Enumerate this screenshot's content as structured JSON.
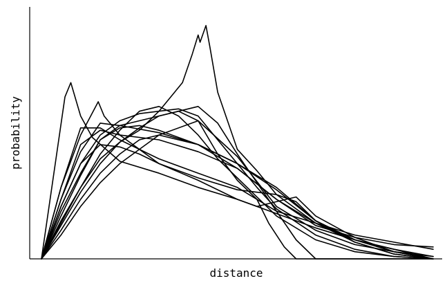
{
  "chart_data": {
    "type": "line",
    "title": "",
    "xlabel": "distance",
    "ylabel": "probability",
    "xlim": [
      0,
      1
    ],
    "ylim": [
      0,
      1
    ],
    "grid": false,
    "legend": "none",
    "line_color": "#000000",
    "series": [
      {
        "x": [
          0,
          0.06,
          0.075,
          0.1,
          0.13,
          0.2,
          0.3,
          0.4,
          0.5,
          0.6,
          0.7,
          0.8,
          0.9,
          1.0
        ],
        "values": [
          0,
          0.68,
          0.74,
          0.6,
          0.51,
          0.41,
          0.36,
          0.3,
          0.25,
          0.19,
          0.13,
          0.08,
          0.04,
          0.01
        ]
      },
      {
        "x": [
          0,
          0.05,
          0.1,
          0.145,
          0.16,
          0.2,
          0.3,
          0.4,
          0.5,
          0.6,
          0.7,
          0.8,
          0.9,
          1.0
        ],
        "values": [
          0,
          0.3,
          0.52,
          0.66,
          0.6,
          0.52,
          0.5,
          0.45,
          0.38,
          0.25,
          0.15,
          0.08,
          0.03,
          0.0
        ]
      },
      {
        "x": [
          0,
          0.05,
          0.1,
          0.15,
          0.2,
          0.25,
          0.3,
          0.36,
          0.385,
          0.4,
          0.405,
          0.42,
          0.43,
          0.45,
          0.5,
          0.55,
          0.6,
          0.7,
          0.8,
          0.9,
          1.0
        ],
        "values": [
          0,
          0.14,
          0.28,
          0.4,
          0.49,
          0.54,
          0.62,
          0.74,
          0.86,
          0.94,
          0.91,
          0.98,
          0.89,
          0.7,
          0.46,
          0.37,
          0.27,
          0.15,
          0.07,
          0.02,
          0.0
        ]
      },
      {
        "x": [
          0,
          0.05,
          0.1,
          0.15,
          0.2,
          0.25,
          0.3,
          0.35,
          0.4,
          0.45,
          0.5,
          0.55,
          0.6,
          0.7,
          0.8,
          0.9,
          1.0
        ],
        "values": [
          0,
          0.16,
          0.3,
          0.44,
          0.54,
          0.62,
          0.64,
          0.6,
          0.52,
          0.42,
          0.34,
          0.26,
          0.18,
          0.08,
          0.03,
          0.01,
          0.0
        ]
      },
      {
        "x": [
          0,
          0.05,
          0.1,
          0.15,
          0.2,
          0.25,
          0.3,
          0.35,
          0.4,
          0.45,
          0.5,
          0.55,
          0.6,
          0.7,
          0.8,
          0.9,
          1.0
        ],
        "values": [
          0,
          0.22,
          0.4,
          0.52,
          0.58,
          0.61,
          0.62,
          0.63,
          0.6,
          0.5,
          0.4,
          0.3,
          0.21,
          0.1,
          0.04,
          0.01,
          0.0
        ]
      },
      {
        "x": [
          0,
          0.05,
          0.1,
          0.15,
          0.2,
          0.25,
          0.3,
          0.35,
          0.4,
          0.45,
          0.5,
          0.55,
          0.6,
          0.65,
          0.7,
          0.8,
          0.9,
          1.0
        ],
        "values": [
          0,
          0.2,
          0.36,
          0.5,
          0.56,
          0.58,
          0.6,
          0.62,
          0.64,
          0.57,
          0.44,
          0.32,
          0.2,
          0.08,
          0.0,
          0.0,
          0.0,
          0.0
        ]
      },
      {
        "x": [
          0,
          0.05,
          0.1,
          0.15,
          0.2,
          0.25,
          0.3,
          0.35,
          0.4,
          0.45,
          0.5,
          0.55,
          0.58,
          0.62,
          0.65,
          0.7,
          0.8,
          0.9,
          1.0
        ],
        "values": [
          0,
          0.15,
          0.3,
          0.42,
          0.49,
          0.55,
          0.6,
          0.62,
          0.58,
          0.44,
          0.33,
          0.25,
          0.15,
          0.05,
          0.0,
          0.0,
          0.0,
          0.0,
          0.0
        ]
      },
      {
        "x": [
          0,
          0.05,
          0.1,
          0.15,
          0.2,
          0.25,
          0.3,
          0.4,
          0.5,
          0.55,
          0.6,
          0.65,
          0.7,
          0.8,
          0.9,
          1.0
        ],
        "values": [
          0,
          0.25,
          0.48,
          0.54,
          0.52,
          0.46,
          0.4,
          0.33,
          0.25,
          0.22,
          0.24,
          0.26,
          0.18,
          0.09,
          0.03,
          0.0
        ]
      },
      {
        "x": [
          0,
          0.05,
          0.1,
          0.15,
          0.2,
          0.25,
          0.3,
          0.4,
          0.5,
          0.55,
          0.6,
          0.65,
          0.7,
          0.8,
          0.9,
          1.0
        ],
        "values": [
          0,
          0.22,
          0.4,
          0.48,
          0.47,
          0.44,
          0.4,
          0.34,
          0.29,
          0.28,
          0.27,
          0.24,
          0.16,
          0.08,
          0.03,
          0.0
        ]
      },
      {
        "x": [
          0,
          0.05,
          0.1,
          0.15,
          0.2,
          0.3,
          0.4,
          0.5,
          0.6,
          0.7,
          0.8,
          0.9,
          1.0
        ],
        "values": [
          0,
          0.25,
          0.45,
          0.57,
          0.56,
          0.53,
          0.48,
          0.4,
          0.29,
          0.16,
          0.08,
          0.04,
          0.0
        ]
      },
      {
        "x": [
          0,
          0.05,
          0.1,
          0.15,
          0.2,
          0.25,
          0.3,
          0.4,
          0.5,
          0.6,
          0.7,
          0.8,
          0.9,
          1.0
        ],
        "values": [
          0,
          0.18,
          0.35,
          0.5,
          0.55,
          0.56,
          0.54,
          0.48,
          0.4,
          0.3,
          0.16,
          0.07,
          0.02,
          0.0
        ]
      },
      {
        "x": [
          0,
          0.05,
          0.1,
          0.15,
          0.2,
          0.25,
          0.3,
          0.4,
          0.5,
          0.6,
          0.7,
          0.8,
          0.9,
          1.0
        ],
        "values": [
          0,
          0.12,
          0.25,
          0.36,
          0.44,
          0.5,
          0.52,
          0.48,
          0.38,
          0.25,
          0.14,
          0.09,
          0.06,
          0.05
        ]
      },
      {
        "x": [
          0,
          0.05,
          0.1,
          0.15,
          0.2,
          0.3,
          0.4,
          0.5,
          0.6,
          0.7,
          0.8,
          0.9,
          1.0
        ],
        "values": [
          0,
          0.1,
          0.22,
          0.32,
          0.4,
          0.52,
          0.58,
          0.43,
          0.22,
          0.12,
          0.06,
          0.03,
          0.01
        ]
      },
      {
        "x": [
          0,
          0.05,
          0.1,
          0.15,
          0.2,
          0.3,
          0.4,
          0.5,
          0.6,
          0.7,
          0.8,
          0.9,
          1.0
        ],
        "values": [
          0,
          0.3,
          0.55,
          0.55,
          0.5,
          0.42,
          0.36,
          0.3,
          0.2,
          0.15,
          0.1,
          0.07,
          0.04
        ]
      }
    ]
  }
}
